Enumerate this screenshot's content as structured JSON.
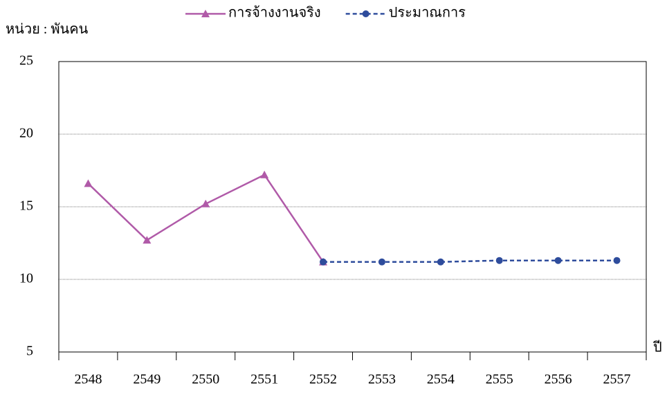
{
  "chart_data": {
    "type": "line",
    "y_label": "หน่วย : พันคน",
    "x_label": "ปี",
    "categories": [
      "2548",
      "2549",
      "2550",
      "2551",
      "2552",
      "2553",
      "2554",
      "2555",
      "2556",
      "2557"
    ],
    "series": [
      {
        "name": "การจ้างงานจริง",
        "color": "#b05aa8",
        "marker": "triangle",
        "line_style": "solid",
        "values": [
          16.6,
          12.7,
          15.2,
          17.2,
          11.2,
          null,
          null,
          null,
          null,
          null
        ]
      },
      {
        "name": "ประมาณการ",
        "color": "#2e4c9c",
        "marker": "circle",
        "line_style": "dashed",
        "values": [
          null,
          null,
          null,
          null,
          11.2,
          11.2,
          11.2,
          11.3,
          11.3,
          11.3
        ]
      }
    ],
    "ylim": [
      5,
      25
    ],
    "yticks": [
      5,
      10,
      15,
      20,
      25
    ],
    "grid": true,
    "legend": "top"
  }
}
